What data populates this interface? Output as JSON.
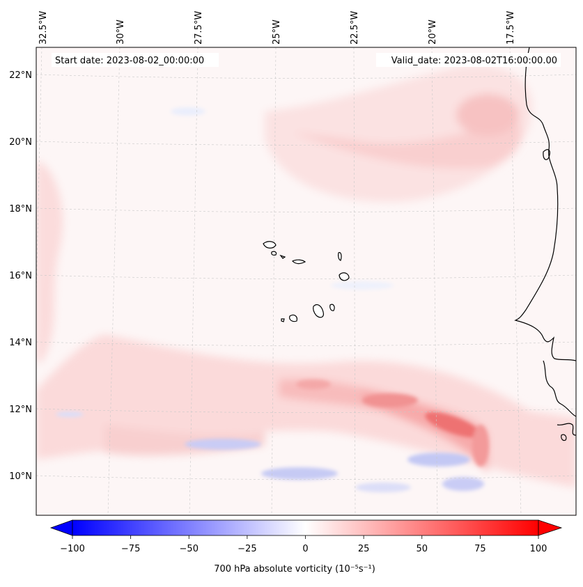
{
  "header": {
    "start_label": "Start date: 2023-08-02_00:00:00",
    "valid_label": "Valid_date: 2023-08-02T16:00:00.00"
  },
  "longitude_labels": [
    "32.5°W",
    "30°W",
    "27.5°W",
    "25°W",
    "22.5°W",
    "20°W",
    "17.5°W"
  ],
  "latitude_labels": [
    "22°N",
    "20°N",
    "18°N",
    "16°N",
    "14°N",
    "12°N",
    "10°N"
  ],
  "colorbar": {
    "label": "700 hPa absolute vorticity",
    "units": "(10⁻⁵s⁻¹)",
    "min": -100,
    "max": 100,
    "tick_values": [
      -100,
      -75,
      -50,
      -25,
      0,
      25,
      50,
      75,
      100
    ],
    "tick_labels": [
      "−100",
      "−75",
      "−50",
      "−25",
      "0",
      "25",
      "50",
      "75",
      "100"
    ],
    "colors": {
      "negative": "#0000ff",
      "zero": "#ffffff",
      "positive": "#ff0000"
    }
  },
  "colors": {
    "coastline": "#000000",
    "gridline": "#c8c8c8"
  }
}
